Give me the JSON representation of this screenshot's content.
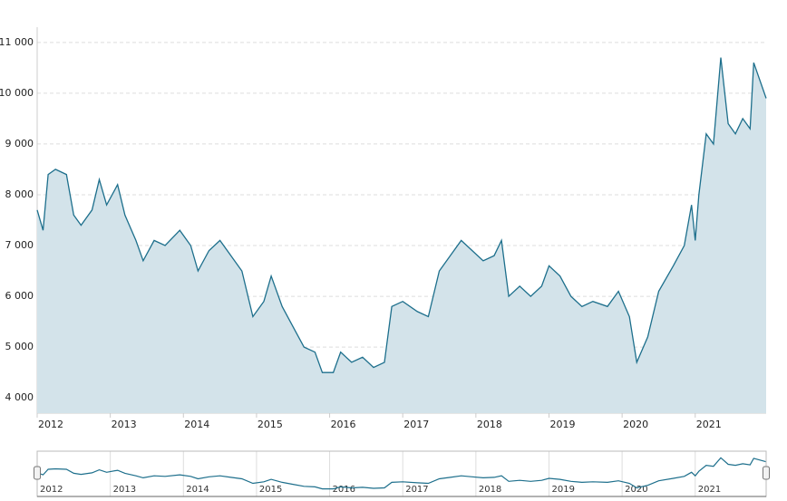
{
  "chart_data": {
    "type": "area",
    "x": [
      2012.0,
      2012.08,
      2012.15,
      2012.25,
      2012.4,
      2012.5,
      2012.6,
      2012.75,
      2012.85,
      2012.95,
      2013.1,
      2013.2,
      2013.35,
      2013.45,
      2013.6,
      2013.75,
      2013.95,
      2014.1,
      2014.2,
      2014.35,
      2014.5,
      2014.65,
      2014.8,
      2014.95,
      2015.1,
      2015.2,
      2015.35,
      2015.5,
      2015.65,
      2015.8,
      2015.9,
      2016.05,
      2016.15,
      2016.3,
      2016.45,
      2016.6,
      2016.75,
      2016.85,
      2017.0,
      2017.2,
      2017.35,
      2017.5,
      2017.65,
      2017.8,
      2017.95,
      2018.1,
      2018.25,
      2018.35,
      2018.45,
      2018.6,
      2018.75,
      2018.9,
      2019.0,
      2019.15,
      2019.3,
      2019.45,
      2019.6,
      2019.8,
      2019.95,
      2020.1,
      2020.2,
      2020.35,
      2020.5,
      2020.7,
      2020.85,
      2020.95,
      2021.0,
      2021.05,
      2021.15,
      2021.25,
      2021.35,
      2021.45,
      2021.55,
      2021.65,
      2021.75,
      2021.8,
      2021.97
    ],
    "series": [
      {
        "color": "#1d6f8c",
        "fill": "#d3e3ea",
        "values": [
          7700,
          7300,
          8400,
          8500,
          8400,
          7600,
          7400,
          7700,
          8300,
          7800,
          8200,
          7600,
          7100,
          6700,
          7100,
          7000,
          7300,
          7000,
          6500,
          6900,
          7100,
          6800,
          6500,
          5600,
          5900,
          6400,
          5800,
          5400,
          5000,
          4900,
          4500,
          4500,
          4900,
          4700,
          4800,
          4600,
          4700,
          5800,
          5900,
          5700,
          5600,
          6500,
          6800,
          7100,
          6900,
          6700,
          6800,
          7100,
          6000,
          6200,
          6000,
          6200,
          6600,
          6400,
          6000,
          5800,
          5900,
          5800,
          6100,
          5600,
          4700,
          5200,
          6100,
          6600,
          7000,
          7800,
          7100,
          8000,
          9200,
          9000,
          10700,
          9400,
          9200,
          9500,
          9300,
          10600,
          9900
        ]
      }
    ],
    "xlim": [
      2012.0,
      2021.97
    ],
    "xticks": [
      2012,
      2013,
      2014,
      2015,
      2016,
      2017,
      2018,
      2019,
      2020,
      2021
    ],
    "ylim": [
      3700,
      11300
    ],
    "yticks": [
      {
        "value": 4000,
        "label": "4 000"
      },
      {
        "value": 5000,
        "label": "5 000"
      },
      {
        "value": 6000,
        "label": "6 000"
      },
      {
        "value": 7000,
        "label": "7 000"
      },
      {
        "value": 8000,
        "label": "8 000"
      },
      {
        "value": 9000,
        "label": "9 000"
      },
      {
        "value": 10000,
        "label": "10 000"
      },
      {
        "value": 11000,
        "label": "11 000"
      }
    ],
    "grid": true
  }
}
